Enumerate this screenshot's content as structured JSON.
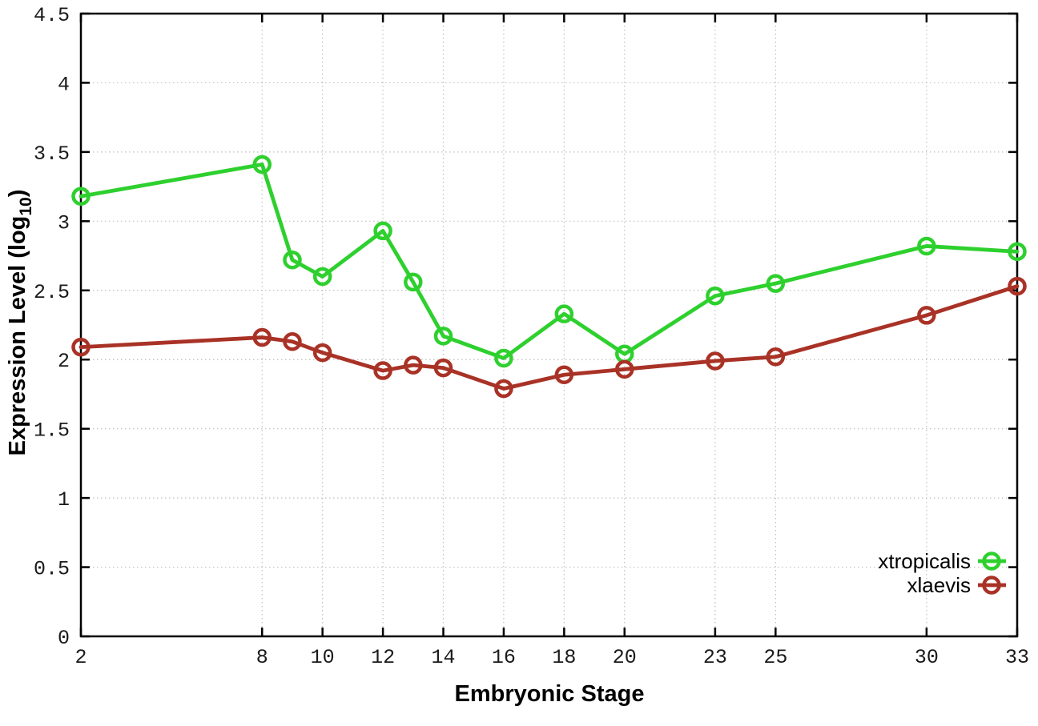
{
  "chart_data": {
    "type": "line",
    "title": "",
    "xlabel": "Embryonic Stage",
    "ylabel": {
      "text": "Expression Level (log10)",
      "prefix": "Expression Level (log",
      "subscript": "10",
      "suffix": ")"
    },
    "x": [
      2,
      8,
      9,
      10,
      12,
      13,
      14,
      16,
      18,
      20,
      23,
      25,
      30,
      33
    ],
    "series": [
      {
        "name": "xtropicalis",
        "color": "#2ed02e",
        "marker": "open-circle",
        "values": [
          3.18,
          3.41,
          2.72,
          2.6,
          2.93,
          2.56,
          2.17,
          2.01,
          2.33,
          2.04,
          2.46,
          2.55,
          2.82,
          2.78
        ]
      },
      {
        "name": "xlaevis",
        "color": "#a93226",
        "marker": "open-circle",
        "values": [
          2.09,
          2.16,
          2.13,
          2.05,
          1.92,
          1.96,
          1.94,
          1.79,
          1.89,
          1.93,
          1.99,
          2.02,
          2.32,
          2.53
        ]
      }
    ],
    "xticks": [
      2,
      8,
      10,
      12,
      14,
      16,
      18,
      20,
      23,
      25,
      30,
      33
    ],
    "yticks": [
      0,
      0.5,
      1,
      1.5,
      2,
      2.5,
      3,
      3.5,
      4,
      4.5
    ],
    "xlim": [
      2,
      33
    ],
    "ylim": [
      0,
      4.5
    ],
    "grid": true,
    "legend_position": "bottom-right-inside",
    "colors": {
      "background": "#ffffff",
      "grid": "#bfbfbf",
      "axis": "#000000"
    }
  }
}
